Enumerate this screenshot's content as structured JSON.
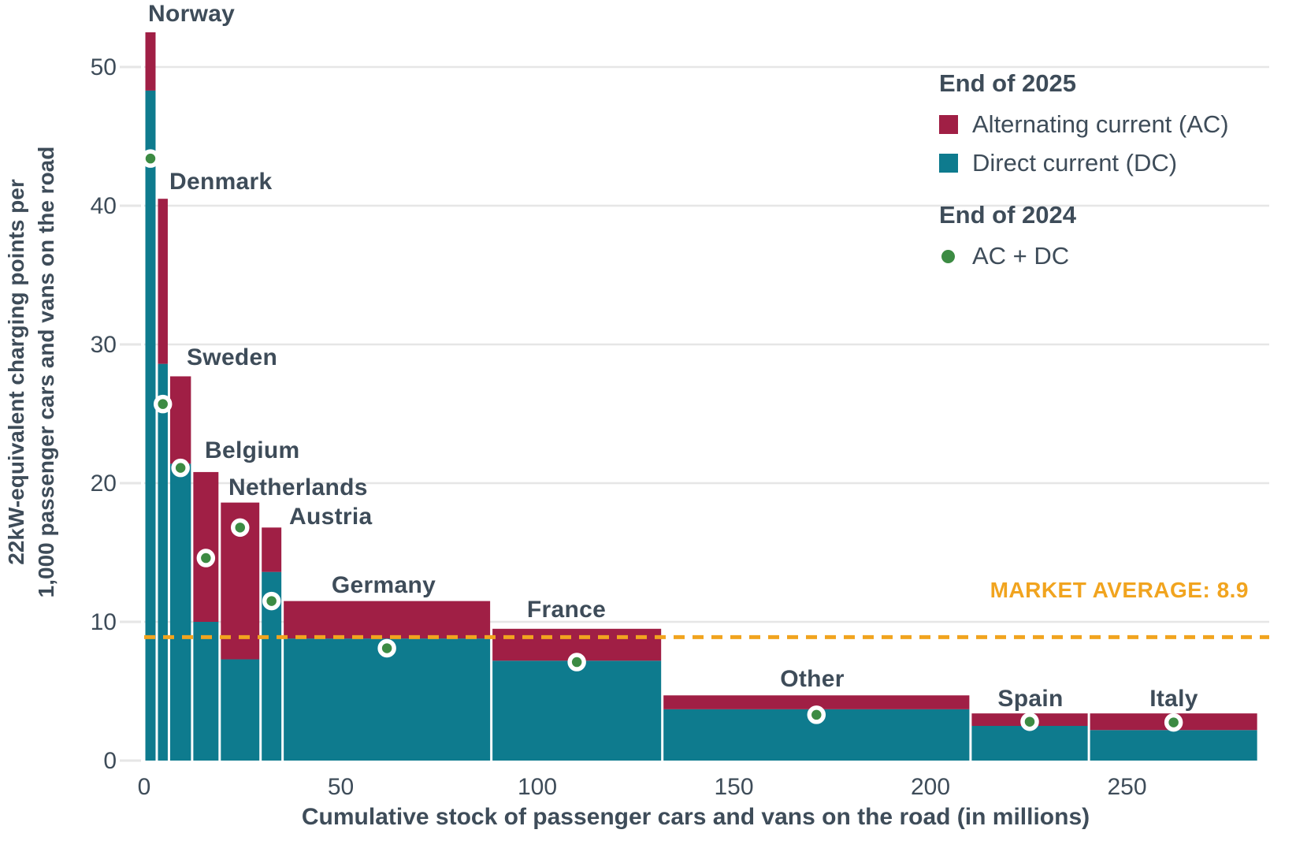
{
  "page": {
    "background": "#ffffff"
  },
  "colors": {
    "ac": "#a01f45",
    "dc": "#0e7b8e",
    "dot_2024": "#3c8b43",
    "dot_ring": "#ffffff",
    "average_line": "#f1a41f",
    "grid": "#e6e6e6",
    "text": "#3e4c59"
  },
  "chart_data": {
    "type": "bar",
    "variant": "variable-width-stacked-marimekko",
    "title": "",
    "xlabel": "Cumulative stock of passenger cars and vans on the road (in millions)",
    "ylabel": "22kW-equivalent charging points per 1,000 passenger cars and vans on the road",
    "ylabel_lines": [
      "22kW-equivalent charging points per",
      "1,000 passenger cars and vans on the road"
    ],
    "x_ticks": [
      0,
      50,
      100,
      150,
      200,
      250
    ],
    "y_ticks": [
      0,
      10,
      20,
      30,
      40,
      50
    ],
    "xlim": [
      0,
      285
    ],
    "ylim": [
      0,
      53
    ],
    "grid": true,
    "market_average": {
      "label": "MARKET AVERAGE: 8.9",
      "value": 8.9
    },
    "legend": {
      "end_2025": {
        "title": "End of 2025",
        "items": [
          {
            "label": "Alternating current (AC)",
            "key": "ac"
          },
          {
            "label": "Direct current (DC)",
            "key": "dc"
          }
        ]
      },
      "end_2024": {
        "title": "End of 2024",
        "items": [
          {
            "label": "AC + DC",
            "key": "dot_2024"
          }
        ]
      }
    },
    "units": {
      "x": "million passenger cars and vans (bar width = national fleet size)",
      "y": "22kW-equivalent charging points per 1,000 vehicles"
    },
    "countries": [
      {
        "name": "Norway",
        "stock_millions": 3.2,
        "ac_2025": 4.2,
        "dc_2025": 48.3,
        "total_2025": 52.5,
        "acdc_2024": 43.4
      },
      {
        "name": "Denmark",
        "stock_millions": 3.1,
        "ac_2025": 11.9,
        "dc_2025": 28.6,
        "total_2025": 40.5,
        "acdc_2024": 25.7
      },
      {
        "name": "Sweden",
        "stock_millions": 5.9,
        "ac_2025": 6.3,
        "dc_2025": 21.4,
        "total_2025": 27.7,
        "acdc_2024": 21.1
      },
      {
        "name": "Belgium",
        "stock_millions": 7.0,
        "ac_2025": 10.8,
        "dc_2025": 10.0,
        "total_2025": 20.8,
        "acdc_2024": 14.6
      },
      {
        "name": "Netherlands",
        "stock_millions": 10.4,
        "ac_2025": 11.3,
        "dc_2025": 7.3,
        "total_2025": 18.6,
        "acdc_2024": 16.8
      },
      {
        "name": "Austria",
        "stock_millions": 5.6,
        "ac_2025": 3.2,
        "dc_2025": 13.6,
        "total_2025": 16.8,
        "acdc_2024": 11.5
      },
      {
        "name": "Germany",
        "stock_millions": 53.1,
        "ac_2025": 2.7,
        "dc_2025": 8.8,
        "total_2025": 11.5,
        "acdc_2024": 8.1
      },
      {
        "name": "France",
        "stock_millions": 43.5,
        "ac_2025": 2.3,
        "dc_2025": 7.2,
        "total_2025": 9.5,
        "acdc_2024": 7.1
      },
      {
        "name": "Other",
        "stock_millions": 78.4,
        "ac_2025": 1.0,
        "dc_2025": 3.7,
        "total_2025": 4.7,
        "acdc_2024": 3.3
      },
      {
        "name": "Spain",
        "stock_millions": 30.1,
        "ac_2025": 0.9,
        "dc_2025": 2.5,
        "total_2025": 3.4,
        "acdc_2024": 2.8
      },
      {
        "name": "Italy",
        "stock_millions": 43.1,
        "ac_2025": 1.2,
        "dc_2025": 2.2,
        "total_2025": 3.4,
        "acdc_2024": 2.75
      }
    ]
  }
}
